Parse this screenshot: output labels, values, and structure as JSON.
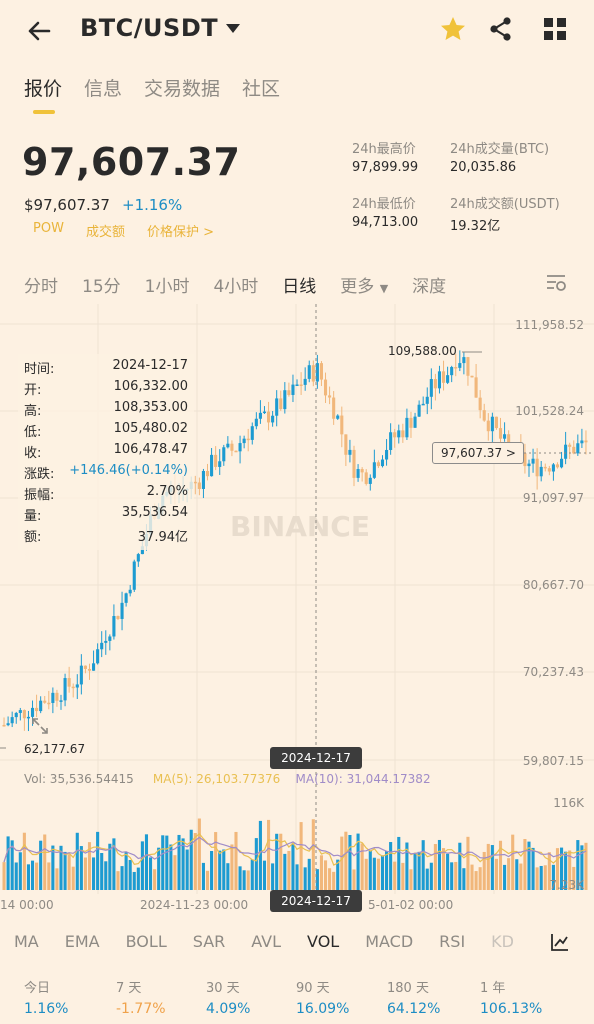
{
  "header": {
    "pair": "BTC/USDT",
    "icons": [
      "back-arrow-icon",
      "chevron-down-icon",
      "star-icon",
      "share-icon",
      "grid-icon"
    ],
    "star_color": "#f0c23a"
  },
  "top_tabs": [
    "报价",
    "信息",
    "交易数据",
    "社区"
  ],
  "price": {
    "last": "97,607.37",
    "usd": "$97,607.37",
    "change": "+1.16%",
    "tags": [
      "POW",
      "成交额",
      "价格保护 >"
    ]
  },
  "stats": {
    "high_label": "24h最高价",
    "high": "97,899.99",
    "low_label": "24h最低价",
    "low": "94,713.00",
    "vol_btc_label": "24h成交量(BTC)",
    "vol_btc": "20,035.86",
    "vol_usdt_label": "24h成交额(USDT)",
    "vol_usdt": "19.32亿"
  },
  "interval_tabs": [
    "分时",
    "15分",
    "1小时",
    "4小时",
    "日线",
    "更多",
    "深度"
  ],
  "chart": {
    "y_axis": [
      "111,958.52",
      "101,528.24",
      "91,097.97",
      "80,667.70",
      "70,237.43",
      "59,807.15"
    ],
    "max_label": "109,588.00",
    "min_label": "62,177.67",
    "current_marker": "97,607.37 >",
    "crosshair_date": "2024-12-17",
    "watermark": "BINANCE",
    "info": {
      "time_label": "时间:",
      "time": "2024-12-17",
      "open_label": "开:",
      "open": "106,332.00",
      "high_label": "高:",
      "high": "108,353.00",
      "low_label": "低:",
      "low": "105,480.02",
      "close_label": "收:",
      "close": "106,478.47",
      "change_label": "涨跌:",
      "change": "+146.46(+0.14%)",
      "amp_label": "振幅:",
      "amp": "2.70%",
      "vol_label": "量:",
      "vol": "35,536.54",
      "amount_label": "额:",
      "amount": "37.94亿"
    },
    "vol_legend": {
      "vol": "Vol: 35,536.54415",
      "ma5": "MA(5): 26,103.77376",
      "ma10": "MA(10): 31,044.17382"
    },
    "vol_axis_top": "116K",
    "vol_axis_bottom": "7.23K",
    "x_labels": [
      "14 00:00",
      "2024-11-23 00:00",
      "5-01-02 00:00"
    ],
    "colors": {
      "up": "#1d9bd1",
      "down": "#f1b77b",
      "ma5": "#e9c052",
      "ma10": "#a08cc8"
    }
  },
  "chart_data": {
    "type": "candlestick",
    "series": [
      {
        "name": "price",
        "values": [
          64000,
          64800,
          65500,
          66200,
          66800,
          67400,
          68000,
          68700,
          69500,
          70800,
          72500,
          75000,
          76800,
          79000,
          82500,
          85500,
          89000,
          91500,
          92000,
          91800,
          92500,
          93200,
          94500,
          95800,
          96500,
          97000,
          98500,
          99800,
          100500,
          101500,
          102400,
          103500,
          104800,
          106000,
          106500,
          103500,
          101200,
          97200,
          94500,
          93800,
          95200,
          96800,
          98200,
          99200,
          100500,
          101800,
          103800,
          105200,
          106200,
          108200,
          107500,
          104000,
          101000,
          99500,
          97800,
          96500,
          95600,
          95000,
          94900,
          95200,
          96000,
          96800,
          97300,
          97607
        ]
      }
    ]
  },
  "indicator_tabs": [
    "MA",
    "EMA",
    "BOLL",
    "SAR",
    "AVL",
    "VOL",
    "MACD",
    "RSI",
    "KD"
  ],
  "performance": [
    {
      "label": "今日",
      "value": "1.16%",
      "trend": "up"
    },
    {
      "label": "7 天",
      "value": "-1.77%",
      "trend": "down"
    },
    {
      "label": "30 天",
      "value": "4.09%",
      "trend": "up"
    },
    {
      "label": "90 天",
      "value": "16.09%",
      "trend": "up"
    },
    {
      "label": "180 天",
      "value": "64.12%",
      "trend": "up"
    },
    {
      "label": "1 年",
      "value": "106.13%",
      "trend": "up"
    }
  ]
}
